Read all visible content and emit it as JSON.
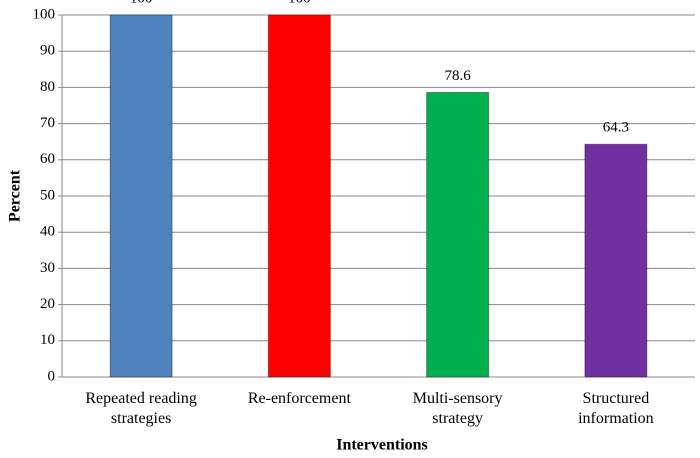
{
  "chart_data": {
    "type": "bar",
    "categories": [
      "Repeated reading strategies",
      "Re-enforcement",
      "Multi-sensory strategy",
      "Structured information"
    ],
    "values": [
      100,
      100,
      78.6,
      64.3
    ],
    "colors": [
      "#4f81bd",
      "#ff0000",
      "#00b050",
      "#7030a0"
    ],
    "xlabel": "Interventions",
    "ylabel": "Percent",
    "ylim": [
      0,
      100
    ],
    "yticks": [
      0,
      10,
      20,
      30,
      40,
      50,
      60,
      70,
      80,
      90,
      100
    ],
    "grid": true
  }
}
